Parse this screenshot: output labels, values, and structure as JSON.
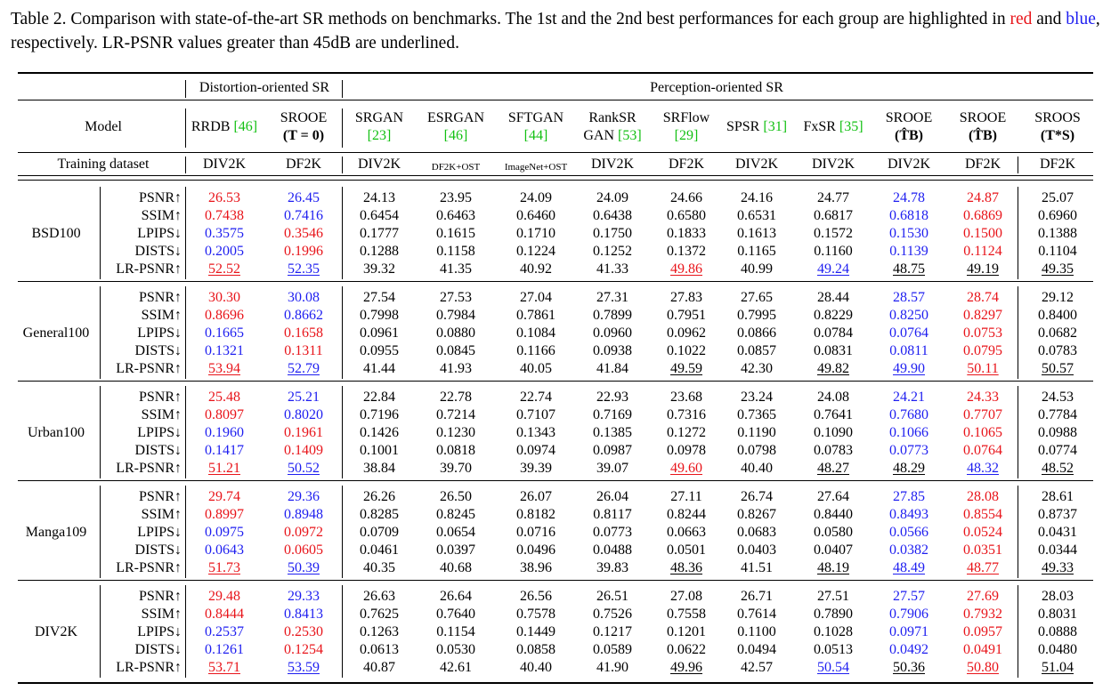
{
  "caption": {
    "prefix": "Table 2.  Comparison with state-of-the-art SR methods on benchmarks.  The 1st and the 2nd best performances for each group are highlighted in ",
    "red_word": "red",
    "middle": " and ",
    "blue_word": "blue",
    "suffix": ", respectively. LR-PSNR values greater than 45dB are underlined."
  },
  "header": {
    "distortion_group": "Distortion-oriented SR",
    "perception_group": "Perception-oriented SR",
    "model_label": "Model",
    "training_label": "Training dataset",
    "columns": [
      {
        "name": "RRDB",
        "ref": "[46]"
      },
      {
        "name": "SROOE",
        "sub": "(T = 0)"
      },
      {
        "name": "SRGAN",
        "ref": "[23]"
      },
      {
        "name": "ESRGAN",
        "ref": "[46]"
      },
      {
        "name": "SFTGAN",
        "ref": "[44]"
      },
      {
        "name": "RankSR",
        "name2": "GAN",
        "ref": "[53]"
      },
      {
        "name": "SRFlow",
        "ref": "[29]"
      },
      {
        "name": "SPSR",
        "ref": "[31]"
      },
      {
        "name": "FxSR",
        "ref": "[35]"
      },
      {
        "name": "SROOE",
        "sub": "(T̂B)"
      },
      {
        "name": "SROOE",
        "sub": "(T̂B)"
      },
      {
        "name": "SROOS",
        "sub": "(T*S)"
      }
    ],
    "datasets": [
      "DIV2K",
      "DF2K",
      "DIV2K",
      "DF2K+OST",
      "ImageNet+OST",
      "DIV2K",
      "DF2K",
      "DIV2K",
      "DIV2K",
      "DIV2K",
      "DF2K",
      "DF2K"
    ]
  },
  "metrics": [
    "PSNR↑",
    "SSIM↑",
    "LPIPS↓",
    "DISTS↓",
    "LR-PSNR↑"
  ],
  "colors": {
    "first": "#e8141a",
    "second": "#1e1ef0",
    "ref": "#12c012"
  },
  "groups": [
    {
      "name": "BSD100",
      "rows": [
        [
          "26.53",
          "26.45",
          "24.13",
          "23.95",
          "24.09",
          "24.09",
          "24.66",
          "24.16",
          "24.77",
          "24.78",
          "24.87",
          "25.07"
        ],
        [
          "0.7438",
          "0.7416",
          "0.6454",
          "0.6463",
          "0.6460",
          "0.6438",
          "0.6580",
          "0.6531",
          "0.6817",
          "0.6818",
          "0.6869",
          "0.6960"
        ],
        [
          "0.3575",
          "0.3546",
          "0.1777",
          "0.1615",
          "0.1710",
          "0.1750",
          "0.1833",
          "0.1613",
          "0.1572",
          "0.1530",
          "0.1500",
          "0.1388"
        ],
        [
          "0.2005",
          "0.1996",
          "0.1288",
          "0.1158",
          "0.1224",
          "0.1252",
          "0.1372",
          "0.1165",
          "0.1160",
          "0.1139",
          "0.1124",
          "0.1104"
        ],
        [
          "52.52",
          "52.35",
          "39.32",
          "41.35",
          "40.92",
          "41.33",
          "49.86",
          "40.99",
          "49.24",
          "48.75",
          "49.19",
          "49.35"
        ]
      ],
      "styles": [
        [
          "r",
          "b",
          "",
          "",
          "",
          "",
          "",
          "",
          "",
          "b",
          "r",
          ""
        ],
        [
          "r",
          "b",
          "",
          "",
          "",
          "",
          "",
          "",
          "",
          "b",
          "r",
          ""
        ],
        [
          "b",
          "r",
          "",
          "",
          "",
          "",
          "",
          "",
          "",
          "b",
          "r",
          ""
        ],
        [
          "b",
          "r",
          "",
          "",
          "",
          "",
          "",
          "",
          "",
          "b",
          "r",
          ""
        ],
        [
          "ru",
          "bu",
          "",
          "",
          "",
          "",
          "ru",
          "",
          "bu",
          "u",
          "u",
          "u"
        ]
      ]
    },
    {
      "name": "General100",
      "rows": [
        [
          "30.30",
          "30.08",
          "27.54",
          "27.53",
          "27.04",
          "27.31",
          "27.83",
          "27.65",
          "28.44",
          "28.57",
          "28.74",
          "29.12"
        ],
        [
          "0.8696",
          "0.8662",
          "0.7998",
          "0.7984",
          "0.7861",
          "0.7899",
          "0.7951",
          "0.7995",
          "0.8229",
          "0.8250",
          "0.8297",
          "0.8400"
        ],
        [
          "0.1665",
          "0.1658",
          "0.0961",
          "0.0880",
          "0.1084",
          "0.0960",
          "0.0962",
          "0.0866",
          "0.0784",
          "0.0764",
          "0.0753",
          "0.0682"
        ],
        [
          "0.1321",
          "0.1311",
          "0.0955",
          "0.0845",
          "0.1166",
          "0.0938",
          "0.1022",
          "0.0857",
          "0.0831",
          "0.0811",
          "0.0795",
          "0.0783"
        ],
        [
          "53.94",
          "52.79",
          "41.44",
          "41.93",
          "40.05",
          "41.84",
          "49.59",
          "42.30",
          "49.82",
          "49.90",
          "50.11",
          "50.57"
        ]
      ],
      "styles": [
        [
          "r",
          "b",
          "",
          "",
          "",
          "",
          "",
          "",
          "",
          "b",
          "r",
          ""
        ],
        [
          "r",
          "b",
          "",
          "",
          "",
          "",
          "",
          "",
          "",
          "b",
          "r",
          ""
        ],
        [
          "b",
          "r",
          "",
          "",
          "",
          "",
          "",
          "",
          "",
          "b",
          "r",
          ""
        ],
        [
          "b",
          "r",
          "",
          "",
          "",
          "",
          "",
          "",
          "",
          "b",
          "r",
          ""
        ],
        [
          "ru",
          "bu",
          "",
          "",
          "",
          "",
          "u",
          "",
          "u",
          "bu",
          "ru",
          "u"
        ]
      ]
    },
    {
      "name": "Urban100",
      "rows": [
        [
          "25.48",
          "25.21",
          "22.84",
          "22.78",
          "22.74",
          "22.93",
          "23.68",
          "23.24",
          "24.08",
          "24.21",
          "24.33",
          "24.53"
        ],
        [
          "0.8097",
          "0.8020",
          "0.7196",
          "0.7214",
          "0.7107",
          "0.7169",
          "0.7316",
          "0.7365",
          "0.7641",
          "0.7680",
          "0.7707",
          "0.7784"
        ],
        [
          "0.1960",
          "0.1961",
          "0.1426",
          "0.1230",
          "0.1343",
          "0.1385",
          "0.1272",
          "0.1190",
          "0.1090",
          "0.1066",
          "0.1065",
          "0.0988"
        ],
        [
          "0.1417",
          "0.1409",
          "0.1001",
          "0.0818",
          "0.0974",
          "0.0987",
          "0.0978",
          "0.0798",
          "0.0783",
          "0.0773",
          "0.0764",
          "0.0774"
        ],
        [
          "51.21",
          "50.52",
          "38.84",
          "39.70",
          "39.39",
          "39.07",
          "49.60",
          "40.40",
          "48.27",
          "48.29",
          "48.32",
          "48.52"
        ]
      ],
      "styles": [
        [
          "r",
          "b",
          "",
          "",
          "",
          "",
          "",
          "",
          "",
          "b",
          "r",
          ""
        ],
        [
          "r",
          "b",
          "",
          "",
          "",
          "",
          "",
          "",
          "",
          "b",
          "r",
          ""
        ],
        [
          "b",
          "r",
          "",
          "",
          "",
          "",
          "",
          "",
          "",
          "b",
          "r",
          ""
        ],
        [
          "b",
          "r",
          "",
          "",
          "",
          "",
          "",
          "",
          "",
          "b",
          "r",
          ""
        ],
        [
          "ru",
          "bu",
          "",
          "",
          "",
          "",
          "ru",
          "",
          "u",
          "u",
          "bu",
          "u"
        ]
      ]
    },
    {
      "name": "Manga109",
      "rows": [
        [
          "29.74",
          "29.36",
          "26.26",
          "26.50",
          "26.07",
          "26.04",
          "27.11",
          "26.74",
          "27.64",
          "27.85",
          "28.08",
          "28.61"
        ],
        [
          "0.8997",
          "0.8948",
          "0.8285",
          "0.8245",
          "0.8182",
          "0.8117",
          "0.8244",
          "0.8267",
          "0.8440",
          "0.8493",
          "0.8554",
          "0.8737"
        ],
        [
          "0.0975",
          "0.0972",
          "0.0709",
          "0.0654",
          "0.0716",
          "0.0773",
          "0.0663",
          "0.0683",
          "0.0580",
          "0.0566",
          "0.0524",
          "0.0431"
        ],
        [
          "0.0643",
          "0.0605",
          "0.0461",
          "0.0397",
          "0.0496",
          "0.0488",
          "0.0501",
          "0.0403",
          "0.0407",
          "0.0382",
          "0.0351",
          "0.0344"
        ],
        [
          "51.73",
          "50.39",
          "40.35",
          "40.68",
          "38.96",
          "39.83",
          "48.36",
          "41.51",
          "48.19",
          "48.49",
          "48.77",
          "49.33"
        ]
      ],
      "styles": [
        [
          "r",
          "b",
          "",
          "",
          "",
          "",
          "",
          "",
          "",
          "b",
          "r",
          ""
        ],
        [
          "r",
          "b",
          "",
          "",
          "",
          "",
          "",
          "",
          "",
          "b",
          "r",
          ""
        ],
        [
          "b",
          "r",
          "",
          "",
          "",
          "",
          "",
          "",
          "",
          "b",
          "r",
          ""
        ],
        [
          "b",
          "r",
          "",
          "",
          "",
          "",
          "",
          "",
          "",
          "b",
          "r",
          ""
        ],
        [
          "ru",
          "bu",
          "",
          "",
          "",
          "",
          "u",
          "",
          "u",
          "bu",
          "ru",
          "u"
        ]
      ]
    },
    {
      "name": "DIV2K",
      "rows": [
        [
          "29.48",
          "29.33",
          "26.63",
          "26.64",
          "26.56",
          "26.51",
          "27.08",
          "26.71",
          "27.51",
          "27.57",
          "27.69",
          "28.03"
        ],
        [
          "0.8444",
          "0.8413",
          "0.7625",
          "0.7640",
          "0.7578",
          "0.7526",
          "0.7558",
          "0.7614",
          "0.7890",
          "0.7906",
          "0.7932",
          "0.8031"
        ],
        [
          "0.2537",
          "0.2530",
          "0.1263",
          "0.1154",
          "0.1449",
          "0.1217",
          "0.1201",
          "0.1100",
          "0.1028",
          "0.0971",
          "0.0957",
          "0.0888"
        ],
        [
          "0.1261",
          "0.1254",
          "0.0613",
          "0.0530",
          "0.0858",
          "0.0589",
          "0.0622",
          "0.0494",
          "0.0513",
          "0.0492",
          "0.0491",
          "0.0480"
        ],
        [
          "53.71",
          "53.59",
          "40.87",
          "42.61",
          "40.40",
          "41.90",
          "49.96",
          "42.57",
          "50.54",
          "50.36",
          "50.80",
          "51.04"
        ]
      ],
      "styles": [
        [
          "r",
          "b",
          "",
          "",
          "",
          "",
          "",
          "",
          "",
          "b",
          "r",
          ""
        ],
        [
          "r",
          "b",
          "",
          "",
          "",
          "",
          "",
          "",
          "",
          "b",
          "r",
          ""
        ],
        [
          "b",
          "r",
          "",
          "",
          "",
          "",
          "",
          "",
          "",
          "b",
          "r",
          ""
        ],
        [
          "b",
          "r",
          "",
          "",
          "",
          "",
          "",
          "",
          "",
          "b",
          "r",
          ""
        ],
        [
          "ru",
          "bu",
          "",
          "",
          "",
          "",
          "u",
          "",
          "bu",
          "u",
          "ru",
          "u"
        ]
      ]
    }
  ]
}
